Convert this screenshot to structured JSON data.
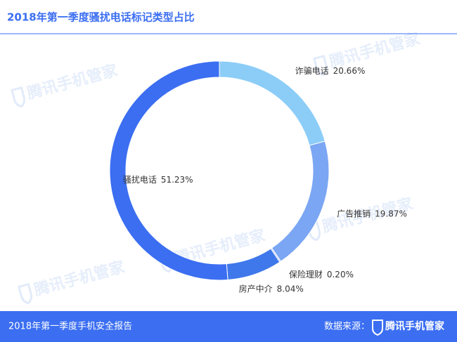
{
  "title": "2018年第一季度骚扰电话标记类型占比",
  "chart_data": {
    "type": "pie",
    "donut": true,
    "categories": [
      "诈骗电话",
      "广告推销",
      "保险理财",
      "房产中介",
      "骚扰电话"
    ],
    "values": [
      20.66,
      19.87,
      0.2,
      8.04,
      51.23
    ],
    "value_labels": [
      "20.66%",
      "19.87%",
      "0.20%",
      "8.04%",
      "51.23%"
    ],
    "colors": [
      "#8ccdf8",
      "#7ba6f3",
      "#a9c4f5",
      "#3f78ea",
      "#3b6ef1"
    ]
  },
  "footer": {
    "report": "2018年第一季度手机安全报告",
    "source_label": "数据来源：",
    "source": "腾讯手机管家"
  },
  "watermark": "腾讯手机管家"
}
